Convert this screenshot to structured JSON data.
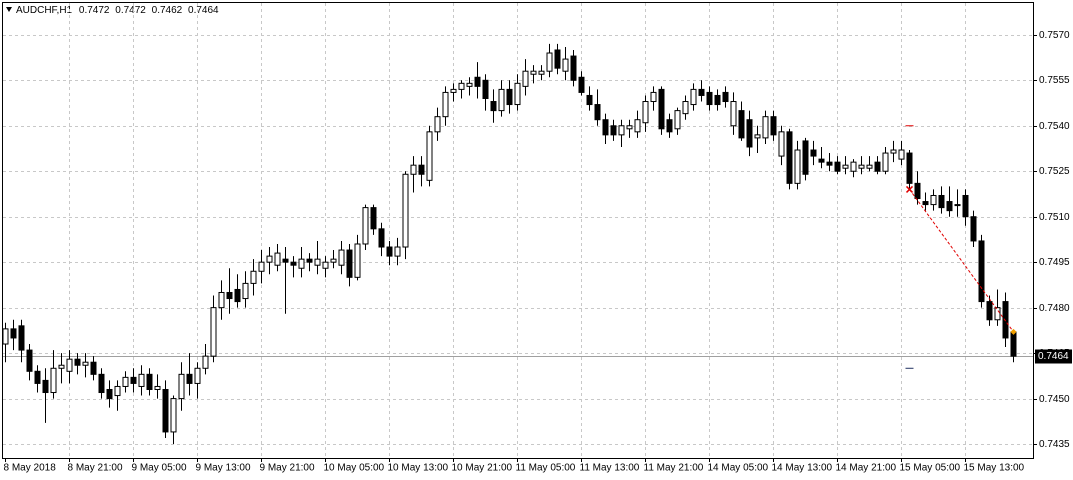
{
  "chart_data": {
    "type": "candlestick",
    "symbol": "AUDCHF,H1",
    "categories": [
      "8 May 2018",
      null,
      null,
      null,
      null,
      null,
      null,
      null,
      "8 May 21:00",
      null,
      null,
      null,
      null,
      null,
      null,
      null,
      "9 May 05:00",
      null,
      null,
      null,
      null,
      null,
      null,
      null,
      "9 May 13:00",
      null,
      null,
      null,
      null,
      null,
      null,
      null,
      "9 May 21:00",
      null,
      null,
      null,
      null,
      null,
      null,
      null,
      "10 May 05:00",
      null,
      null,
      null,
      null,
      null,
      null,
      null,
      "10 May 13:00",
      null,
      null,
      null,
      null,
      null,
      null,
      null,
      "10 May 21:00",
      null,
      null,
      null,
      null,
      null,
      null,
      null,
      "11 May 05:00",
      null,
      null,
      null,
      null,
      null,
      null,
      null,
      "11 May 13:00",
      null,
      null,
      null,
      null,
      null,
      null,
      null,
      "11 May 21:00",
      null,
      null,
      null,
      null,
      null,
      null,
      null,
      "14 May 05:00",
      null,
      null,
      null,
      null,
      null,
      null,
      null,
      "14 May 13:00",
      null,
      null,
      null,
      null,
      null,
      null,
      null,
      "14 May 21:00",
      null,
      null,
      null,
      null,
      null,
      null,
      null,
      "15 May 05:00",
      null,
      null,
      null,
      null,
      null,
      null,
      null,
      "15 May 13:00",
      null,
      null,
      null,
      null,
      null,
      null
    ],
    "open": [
      0.7468,
      0.7473,
      0.7474,
      0.7466,
      0.7459,
      0.7456,
      0.7452,
      0.746,
      0.7459,
      0.7463,
      0.7461,
      0.7462,
      0.7458,
      0.7453,
      0.7451,
      0.7454,
      0.7457,
      0.7454,
      0.7458,
      0.7453,
      0.7453,
      0.7439,
      0.745,
      0.7458,
      0.7455,
      0.746,
      0.7464,
      0.748,
      0.7485,
      0.7486,
      0.7483,
      0.7488,
      0.7492,
      0.7495,
      0.7494,
      0.7496,
      0.7495,
      0.7493,
      0.7496,
      0.7494,
      0.7493,
      0.7495,
      0.7494,
      0.7499,
      0.749,
      0.7501,
      0.7513,
      0.7506,
      0.75,
      0.7497,
      0.75,
      0.7524,
      0.7527,
      0.7522,
      0.7538,
      0.7543,
      0.7551,
      0.7552,
      0.7553,
      0.7556,
      0.7555,
      0.7548,
      0.7545,
      0.7552,
      0.7547,
      0.7553,
      0.7557,
      0.7557,
      0.7558,
      0.7565,
      0.7558,
      0.7563,
      0.7556,
      0.755,
      0.7547,
      0.7542,
      0.754,
      0.7537,
      0.7539,
      0.7538,
      0.7541,
      0.7548,
      0.7552,
      0.7542,
      0.7539,
      0.7544,
      0.7547,
      0.7552,
      0.7551,
      0.755,
      0.7551,
      0.754,
      0.7545,
      0.7542,
      0.7536,
      0.7536,
      0.7543,
      0.753,
      0.7538,
      0.7521,
      0.7535,
      0.7532,
      0.7529,
      0.7528,
      0.7528,
      0.7526,
      0.7525,
      0.7526,
      0.7526,
      0.7528,
      0.7525,
      0.7531,
      0.7529,
      0.7531,
      0.7521,
      0.7515,
      0.7514,
      0.7517,
      0.7515,
      0.7514,
      0.7517,
      0.751,
      0.7502,
      0.7482,
      0.7476,
      0.7482,
      0.7472
    ],
    "high": [
      0.7475,
      0.7476,
      0.7476,
      0.7468,
      0.7461,
      0.746,
      0.7466,
      0.7465,
      0.7466,
      0.7465,
      0.7465,
      0.7464,
      0.746,
      0.7456,
      0.7456,
      0.7459,
      0.746,
      0.7461,
      0.746,
      0.7458,
      0.7456,
      0.7451,
      0.7462,
      0.7465,
      0.7462,
      0.7468,
      0.7484,
      0.7489,
      0.7493,
      0.7491,
      0.7492,
      0.7496,
      0.7499,
      0.75,
      0.7501,
      0.75,
      0.7497,
      0.75,
      0.7498,
      0.7502,
      0.7497,
      0.7499,
      0.7502,
      0.7501,
      0.7504,
      0.7514,
      0.7514,
      0.7508,
      0.7502,
      0.7503,
      0.7525,
      0.753,
      0.753,
      0.754,
      0.7546,
      0.7553,
      0.7554,
      0.7555,
      0.7556,
      0.7561,
      0.7557,
      0.7552,
      0.7555,
      0.7555,
      0.7557,
      0.7562,
      0.756,
      0.756,
      0.7567,
      0.7567,
      0.7566,
      0.7565,
      0.7558,
      0.7553,
      0.7552,
      0.7544,
      0.7542,
      0.7542,
      0.7542,
      0.7545,
      0.755,
      0.7553,
      0.7553,
      0.7544,
      0.7546,
      0.755,
      0.7554,
      0.7555,
      0.7553,
      0.7552,
      0.7553,
      0.7551,
      0.7548,
      0.7545,
      0.754,
      0.7545,
      0.7545,
      0.754,
      0.7539,
      0.7535,
      0.7536,
      0.7535,
      0.7533,
      0.7531,
      0.753,
      0.753,
      0.7529,
      0.753,
      0.753,
      0.753,
      0.7533,
      0.7535,
      0.7535,
      0.7532,
      0.7525,
      0.7518,
      0.7519,
      0.752,
      0.752,
      0.7519,
      0.7519,
      0.7512,
      0.7504,
      0.7484,
      0.7486,
      0.7485,
      0.7472
    ],
    "low": [
      0.7462,
      0.7466,
      0.7462,
      0.7456,
      0.7452,
      0.7442,
      0.745,
      0.7455,
      0.7455,
      0.7458,
      0.7457,
      0.7456,
      0.745,
      0.7447,
      0.7446,
      0.7452,
      0.7452,
      0.7451,
      0.7451,
      0.745,
      0.7437,
      0.7435,
      0.7446,
      0.7451,
      0.745,
      0.7458,
      0.7462,
      0.7476,
      0.7478,
      0.748,
      0.748,
      0.7484,
      0.7488,
      0.7491,
      0.7492,
      0.7478,
      0.749,
      0.749,
      0.7492,
      0.7491,
      0.749,
      0.7493,
      0.7491,
      0.7487,
      0.7489,
      0.7499,
      0.7504,
      0.7497,
      0.7494,
      0.7494,
      0.7496,
      0.7518,
      0.752,
      0.752,
      0.7535,
      0.754,
      0.7548,
      0.7549,
      0.755,
      0.7549,
      0.7545,
      0.7541,
      0.7543,
      0.7544,
      0.7545,
      0.755,
      0.7554,
      0.7555,
      0.7556,
      0.7557,
      0.7555,
      0.7553,
      0.755,
      0.7545,
      0.754,
      0.7534,
      0.7535,
      0.7533,
      0.7536,
      0.7536,
      0.7538,
      0.7545,
      0.7537,
      0.7536,
      0.7537,
      0.7542,
      0.7545,
      0.7548,
      0.7545,
      0.7545,
      0.7546,
      0.7537,
      0.7535,
      0.753,
      0.7531,
      0.7534,
      0.7535,
      0.7527,
      0.7519,
      0.7519,
      0.7522,
      0.7527,
      0.7526,
      0.7525,
      0.7524,
      0.7524,
      0.7523,
      0.7524,
      0.7525,
      0.7524,
      0.7524,
      0.7528,
      0.7527,
      0.7519,
      0.7514,
      0.7512,
      0.7512,
      0.7511,
      0.751,
      0.751,
      0.7507,
      0.75,
      0.748,
      0.7474,
      0.7474,
      0.7467,
      0.7462
    ],
    "close": [
      0.7473,
      0.747,
      0.7466,
      0.7459,
      0.7455,
      0.7452,
      0.746,
      0.7461,
      0.7463,
      0.7461,
      0.7462,
      0.7458,
      0.7452,
      0.745,
      0.7454,
      0.7457,
      0.7455,
      0.7458,
      0.7453,
      0.7454,
      0.7439,
      0.745,
      0.7458,
      0.7455,
      0.746,
      0.7464,
      0.748,
      0.7485,
      0.7483,
      0.7482,
      0.7488,
      0.7492,
      0.7495,
      0.7497,
      0.7498,
      0.7495,
      0.7494,
      0.7496,
      0.7495,
      0.7496,
      0.7495,
      0.7496,
      0.7499,
      0.749,
      0.7501,
      0.7513,
      0.7506,
      0.75,
      0.7497,
      0.75,
      0.7524,
      0.7527,
      0.7524,
      0.7538,
      0.7543,
      0.7551,
      0.7552,
      0.7554,
      0.7554,
      0.7553,
      0.7549,
      0.7545,
      0.7552,
      0.7547,
      0.7554,
      0.7558,
      0.7558,
      0.7558,
      0.7564,
      0.7559,
      0.7562,
      0.7555,
      0.7551,
      0.7547,
      0.7542,
      0.7537,
      0.7537,
      0.754,
      0.754,
      0.7542,
      0.7548,
      0.7551,
      0.7539,
      0.7538,
      0.7545,
      0.7548,
      0.7552,
      0.755,
      0.7547,
      0.7547,
      0.7548,
      0.7548,
      0.7536,
      0.7533,
      0.7537,
      0.7543,
      0.7537,
      0.7538,
      0.7521,
      0.7532,
      0.7524,
      0.753,
      0.7528,
      0.7527,
      0.7525,
      0.7527,
      0.7528,
      0.7527,
      0.7527,
      0.7525,
      0.7531,
      0.7532,
      0.7532,
      0.7521,
      0.7516,
      0.7514,
      0.7517,
      0.7513,
      0.7512,
      0.7514,
      0.751,
      0.7502,
      0.7482,
      0.7476,
      0.748,
      0.747,
      0.7464
    ],
    "trade": {
      "entry_bar": 113,
      "entry": 0.7519,
      "exit_bar": 126,
      "exit": 0.7472,
      "take_profit": 0.754,
      "stop_loss": 0.746
    },
    "ylim": [
      0.74304,
      0.75805
    ],
    "yticks": [
      {
        "value": 0.757,
        "label": "0.7570"
      },
      {
        "value": 0.7555,
        "label": "0.7555"
      },
      {
        "value": 0.754,
        "label": "0.7540"
      },
      {
        "value": 0.7525,
        "label": "0.7525"
      },
      {
        "value": 0.751,
        "label": "0.7510"
      },
      {
        "value": 0.7495,
        "label": "0.7495"
      },
      {
        "value": 0.748,
        "label": "0.7480"
      },
      {
        "value": 0.7465,
        "label": "0.7465"
      },
      {
        "value": 0.745,
        "label": "0.7450"
      },
      {
        "value": 0.7435,
        "label": "0.7435"
      }
    ],
    "grid": true,
    "up_color": "#ffffff",
    "down_color": "#000000",
    "trade_color": "#e00000"
  }
}
